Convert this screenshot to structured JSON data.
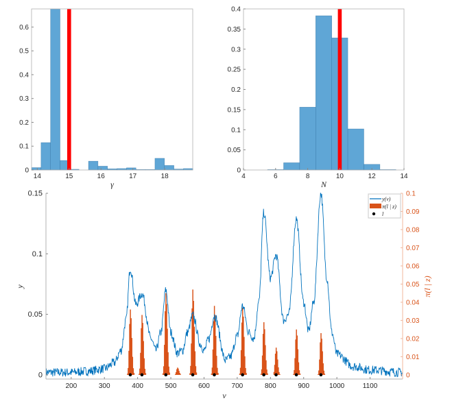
{
  "colors": {
    "bar": "#5fa6d6",
    "bar_edge": "#2f6fa0",
    "truth": "#ff0000",
    "signal": "#0072bd",
    "posterior": "#d95319",
    "location": "#000000",
    "axis": "#b0b0b0"
  },
  "chart_data": [
    {
      "type": "bar",
      "panel": "top-left",
      "xlabel": "γ",
      "ylabel": "",
      "xlim": [
        13.82,
        18.88
      ],
      "ylim": [
        0,
        0.676
      ],
      "xticks": [
        "14",
        "15",
        "16",
        "17",
        "18"
      ],
      "yticks": [
        "0",
        "0.1",
        "0.2",
        "0.3",
        "0.4",
        "0.5",
        "0.6"
      ],
      "bin_edges_start": 13.82,
      "bin_width": 0.298,
      "values": [
        0.01,
        0.115,
        0.68,
        0.04,
        0.003,
        0,
        0.037,
        0.016,
        0.005,
        0.006,
        0.009,
        0.002,
        0.002,
        0.049,
        0.019,
        0.004,
        0.006
      ],
      "true_value": 15
    },
    {
      "type": "bar",
      "panel": "top-right",
      "xlabel": "N",
      "ylabel": "",
      "xlim": [
        4,
        14
      ],
      "ylim": [
        0,
        0.4
      ],
      "xticks": [
        "4",
        "6",
        "8",
        "10",
        "12",
        "14"
      ],
      "yticks": [
        "0",
        "0.05",
        "0.1",
        "0.15",
        "0.2",
        "0.25",
        "0.3",
        "0.35",
        "0.4"
      ],
      "bin_edges_start": 5.5,
      "bin_width": 1,
      "values": [
        0.001,
        0.018,
        0.156,
        0.383,
        0.328,
        0.102,
        0.014,
        0.001
      ],
      "true_value": 10
    },
    {
      "type": "line",
      "panel": "bottom",
      "xlabel": "ν",
      "ylabel": "y",
      "ylabel_right": "π(l | z)",
      "xlim": [
        124,
        1198
      ],
      "ylim": [
        -0.0035,
        0.15
      ],
      "ylim_right": [
        -0.0023,
        0.1
      ],
      "xticks": [
        "200",
        "300",
        "400",
        "500",
        "600",
        "700",
        "800",
        "900",
        "1000",
        "1100"
      ],
      "yticks": [
        "0",
        "0.05",
        "0.1",
        "0.15"
      ],
      "yticks_right": [
        "0",
        "0.01",
        "0.02",
        "0.03",
        "0.04",
        "0.05",
        "0.06",
        "0.07",
        "0.08",
        "0.09",
        "0.1"
      ],
      "legend": {
        "placement": "top-right",
        "entries": [
          "y(ν)",
          "π(l | z)",
          "l"
        ]
      },
      "series": [
        {
          "name": "y(ν)",
          "x": [
            124,
            200,
            250,
            300,
            330,
            350,
            365,
            378,
            395,
            413,
            440,
            455,
            470,
            485,
            500,
            520,
            535,
            550,
            566,
            590,
            600,
            615,
            631,
            665,
            680,
            700,
            716,
            735,
            750,
            765,
            780,
            800,
            817,
            840,
            855,
            878,
            900,
            915,
            930,
            952,
            970,
            985,
            1000,
            1050,
            1100,
            1198
          ],
          "y": [
            0.002,
            0.002,
            0.003,
            0.005,
            0.01,
            0.02,
            0.045,
            0.088,
            0.058,
            0.067,
            0.03,
            0.02,
            0.035,
            0.07,
            0.035,
            0.018,
            0.02,
            0.035,
            0.049,
            0.025,
            0.02,
            0.03,
            0.049,
            0.012,
            0.015,
            0.032,
            0.057,
            0.035,
            0.03,
            0.06,
            0.134,
            0.08,
            0.099,
            0.045,
            0.05,
            0.129,
            0.06,
            0.036,
            0.06,
            0.15,
            0.08,
            0.035,
            0.017,
            0.007,
            0.004,
            0.002
          ]
        },
        {
          "name": "π(l | z)",
          "centers": [
            378,
            413,
            485,
            520,
            566,
            631,
            716,
            780,
            817,
            878,
            952
          ],
          "peak_heights": [
            0.036,
            0.033,
            0.045,
            0.004,
            0.047,
            0.038,
            0.037,
            0.029,
            0.015,
            0.025,
            0.023
          ]
        },
        {
          "name": "l",
          "x": [
            378,
            413,
            485,
            566,
            631,
            716,
            780,
            817,
            878,
            952
          ],
          "y": [
            0,
            0,
            0,
            0,
            0,
            0,
            0,
            0,
            0,
            0
          ]
        }
      ]
    }
  ]
}
